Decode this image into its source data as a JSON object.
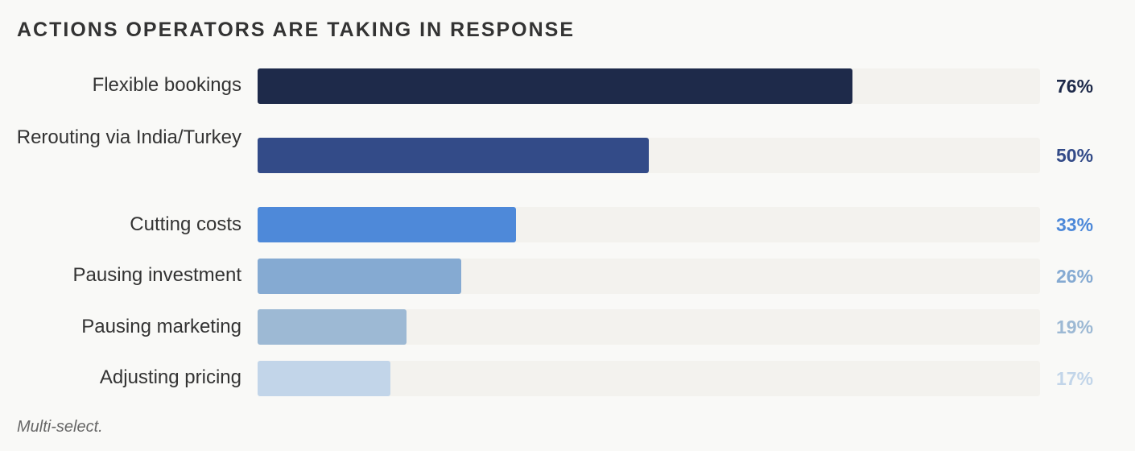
{
  "title": "ACTIONS OPERATORS ARE TAKING IN RESPONSE",
  "footnote": "Multi-select.",
  "chart_data": {
    "type": "bar",
    "orientation": "horizontal",
    "title": "ACTIONS OPERATORS ARE TAKING IN RESPONSE",
    "xlabel": "",
    "ylabel": "",
    "xlim": [
      0,
      100
    ],
    "unit": "%",
    "grid": false,
    "categories": [
      "Flexible bookings",
      "Rerouting via India/Turkey",
      "Cutting costs",
      "Pausing investment",
      "Pausing marketing",
      "Adjusting pricing"
    ],
    "values": [
      76,
      50,
      33,
      26,
      19,
      17
    ],
    "value_labels": [
      "76%",
      "50%",
      "33%",
      "26%",
      "19%",
      "17%"
    ],
    "colors": [
      "#1e2a4a",
      "#334b88",
      "#4e89d9",
      "#85aad2",
      "#9db9d4",
      "#c2d5e9"
    ],
    "track_color": "#f3f2ee"
  }
}
